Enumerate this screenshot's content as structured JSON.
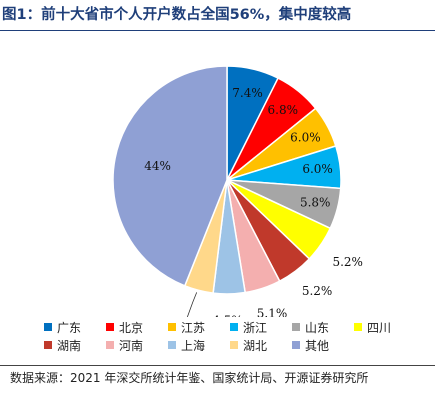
{
  "title": "图1：前十大省市个人开户数占全国56%，集中度较高",
  "source": "数据来源：2021 年深交所统计年鉴、国家统计局、开源证券研究所",
  "chart_data": {
    "type": "pie",
    "title": "",
    "legend_position": "bottom",
    "start_angle_deg": 0,
    "direction": "clockwise",
    "slices": [
      {
        "name": "广东",
        "value": 7.4,
        "label": "7.4%",
        "color": "#0070C0"
      },
      {
        "name": "北京",
        "value": 6.8,
        "label": "6.8%",
        "color": "#FF0000"
      },
      {
        "name": "江苏",
        "value": 6.0,
        "label": "6.0%",
        "color": "#FFC000"
      },
      {
        "name": "浙江",
        "value": 6.0,
        "label": "6.0%",
        "color": "#00B0F0"
      },
      {
        "name": "山东",
        "value": 5.8,
        "label": "5.8%",
        "color": "#A6A6A6"
      },
      {
        "name": "四川",
        "value": 5.2,
        "label": "5.2%",
        "color": "#FFFF00"
      },
      {
        "name": "湖南",
        "value": 5.2,
        "label": "5.2%",
        "color": "#C0392B"
      },
      {
        "name": "河南",
        "value": 5.1,
        "label": "5.1%",
        "color": "#F4AFAF"
      },
      {
        "name": "上海",
        "value": 4.5,
        "label": "4.5%",
        "color": "#9DC3E6"
      },
      {
        "name": "湖北",
        "value": 4.1,
        "label": "4.1%",
        "color": "#FFD88A"
      },
      {
        "name": "其他",
        "value": 44.0,
        "label": "44%",
        "color": "#8FA0D4"
      }
    ]
  }
}
